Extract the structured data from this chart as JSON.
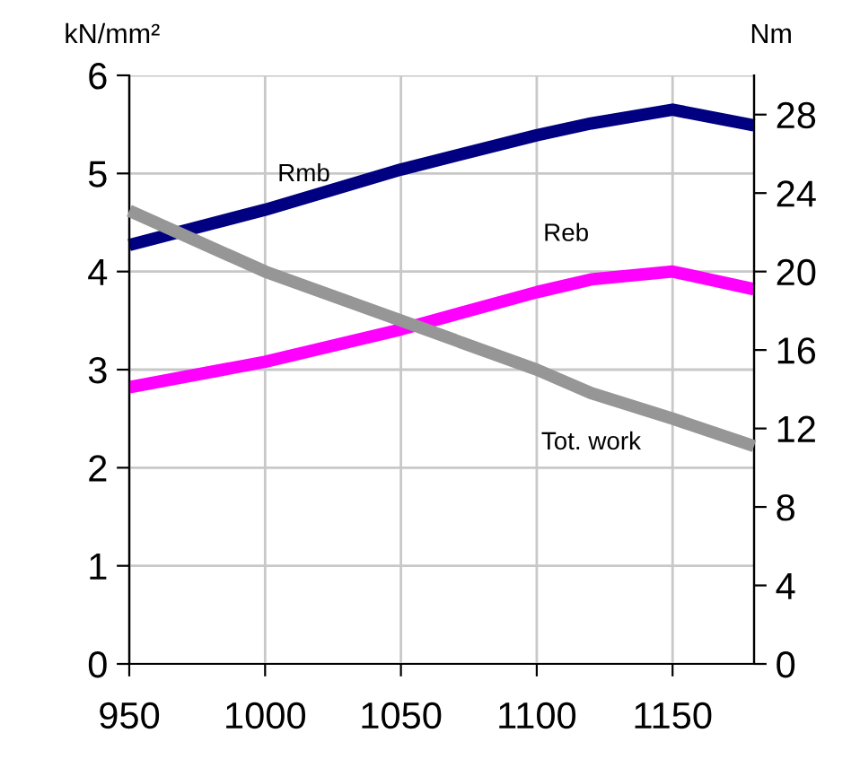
{
  "chart_data": {
    "type": "line",
    "ylabel": "kN/mm²",
    "y2label": "Nm",
    "x": [
      950,
      1000,
      1050,
      1100,
      1120,
      1150,
      1180
    ],
    "series": [
      {
        "name": "Rmb",
        "color": "#000080",
        "values": [
          4.27,
          4.63,
          5.04,
          5.39,
          5.51,
          5.65,
          5.49
        ]
      },
      {
        "name": "Reb",
        "color": "#ff00ff",
        "values": [
          2.82,
          3.08,
          3.41,
          3.79,
          3.92,
          4.0,
          3.82
        ]
      },
      {
        "name": "Tot. work",
        "color": "#969696",
        "axis": "y2",
        "values": [
          23.1,
          20.0,
          17.5,
          15.0,
          13.8,
          12.5,
          11.1
        ]
      }
    ],
    "xlim": [
      950,
      1180
    ],
    "xticks": [
      950,
      1000,
      1050,
      1100,
      1150
    ],
    "ylim": [
      0,
      6
    ],
    "yticks": [
      0,
      1,
      2,
      3,
      4,
      5,
      6
    ],
    "y2lim": [
      0,
      30
    ],
    "y2ticks": [
      0,
      4,
      8,
      12,
      16,
      20,
      24,
      28
    ],
    "grid": true,
    "legend": false,
    "marker": "none",
    "line_style": "solid"
  }
}
